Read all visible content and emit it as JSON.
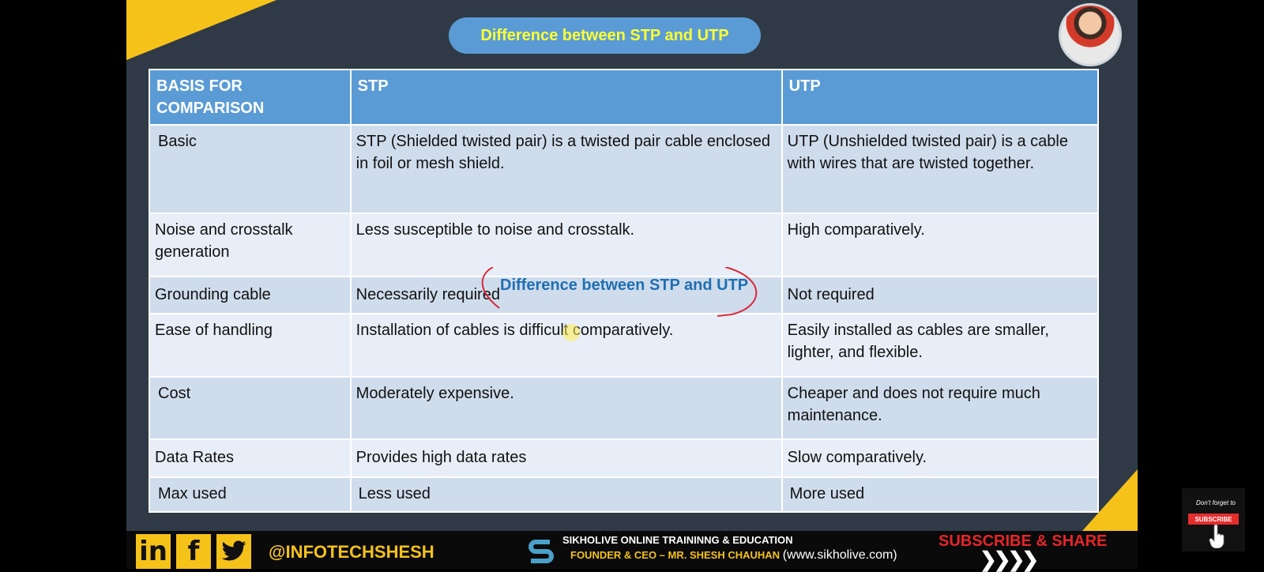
{
  "slide_title": "Difference between STP and UTP",
  "table": {
    "headers": [
      "BASIS FOR\nCOMPARISON",
      "STP",
      "UTP"
    ],
    "rows": [
      [
        "Basic",
        "STP (Shielded twisted pair) is a twisted pair cable enclosed in foil or mesh shield.",
        "UTP (Unshielded twisted pair) is a cable with wires that are twisted together."
      ],
      [
        "Noise and crosstalk generation",
        "Less susceptible to noise and crosstalk.",
        "High comparatively."
      ],
      [
        "Grounding cable",
        "Necessarily required",
        "Not required"
      ],
      [
        "Ease of handling",
        "Installation of cables is difficult comparatively.",
        "Easily installed as cables are smaller, lighter, and flexible."
      ],
      [
        "Cost",
        "Moderately expensive.",
        "Cheaper and does not require much maintenance."
      ],
      [
        "Data Rates",
        "Provides high data rates",
        "Slow comparatively."
      ],
      [
        "Max used",
        "Less used",
        "More used"
      ]
    ]
  },
  "annotation_text": "Difference between STP and UTP",
  "footer": {
    "social_labels": [
      "in",
      "f"
    ],
    "handle": "@INFOTECHSHESH",
    "org_line1": "SIKHOLIVE ONLINE TRAININNG & EDUCATION",
    "org_line2": "FOUNDER & CEO – MR. SHESH CHAUHAN",
    "org_url": "(www.sikholive.com)",
    "cta": "SUBSCRIBE & SHARE",
    "chevrons": "❯❯❯❯"
  },
  "subscribe_widget": {
    "tagline": "Don't forget to",
    "button": "SUBSCRIBE"
  },
  "colors": {
    "accent_yellow": "#f5c21a",
    "header_blue": "#5b9bd5",
    "title_text": "#ffff33",
    "annotation_red": "#d8283a",
    "annotation_blue": "#1f6fb2",
    "cta_red": "#e5252a"
  },
  "icons": [
    "linkedin-icon",
    "facebook-icon",
    "twitter-icon",
    "sikholive-logo-icon",
    "hand-pointer-icon"
  ]
}
